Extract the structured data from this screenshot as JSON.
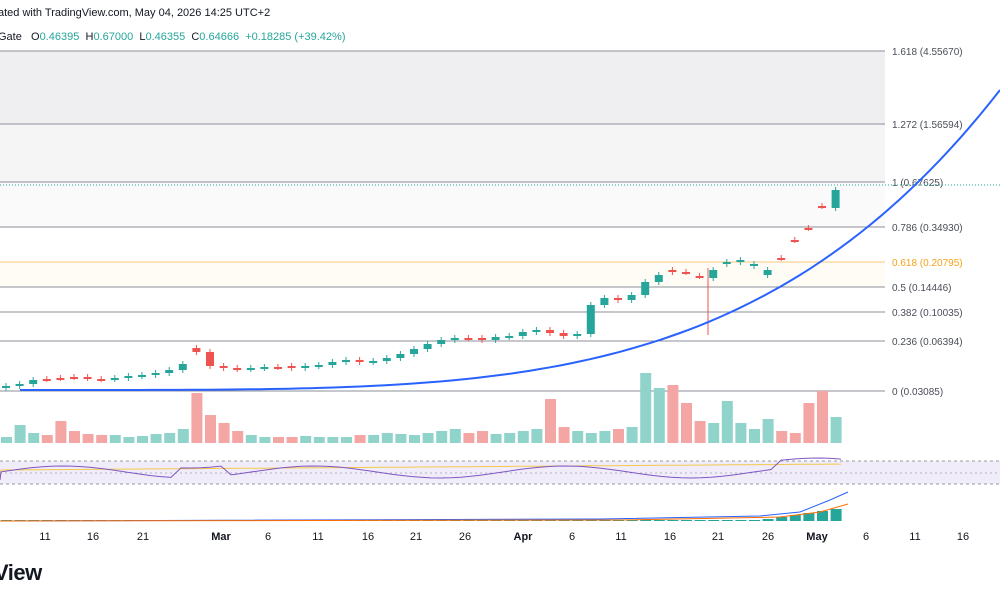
{
  "header": {
    "published": "ated with TradingView.com, May 04, 2026 14:25 UTC+2",
    "symbol": "Gate",
    "open_label": "O",
    "open": "0.46395",
    "high_label": "H",
    "high": "0.67000",
    "low_label": "L",
    "low": "0.46355",
    "close_label": "C",
    "close": "0.64666",
    "change": "+0.18285 (+39.42%)"
  },
  "branding": {
    "logo_text": "View"
  },
  "colors": {
    "up": "#26a69a",
    "down": "#ef5350",
    "curve": "#2962ff",
    "fib_highlight": "#f7a21b",
    "rsi": "#7e57c2",
    "rsi_ma": "#f2c94c",
    "macd": "#2962ff",
    "signal": "#ff6d00"
  },
  "chart_data": {
    "type": "candlestick",
    "title": "",
    "y_scale": "log",
    "fib_levels": [
      {
        "ratio": "1.618",
        "value": 4.5567,
        "label": "1.618 (4.55670)"
      },
      {
        "ratio": "1.272",
        "value": 1.56594,
        "label": "1.272 (1.56594)"
      },
      {
        "ratio": "1",
        "value": 0.67625,
        "label": "1 (0.67625)"
      },
      {
        "ratio": "0.786",
        "value": 0.3493,
        "label": "0.786 (0.34930)"
      },
      {
        "ratio": "0.618",
        "value": 0.20795,
        "label": "0.618 (0.20795)",
        "highlight": true
      },
      {
        "ratio": "0.5",
        "value": 0.14446,
        "label": "0.5 (0.14446)"
      },
      {
        "ratio": "0.382",
        "value": 0.10035,
        "label": "0.382 (0.10035)"
      },
      {
        "ratio": "0.236",
        "value": 0.06394,
        "label": "0.236 (0.06394)"
      },
      {
        "ratio": "0",
        "value": 0.03085,
        "label": "0 (0.03085)"
      }
    ],
    "x_ticks": [
      {
        "label": "11",
        "bold": false
      },
      {
        "label": "16",
        "bold": false
      },
      {
        "label": "21",
        "bold": false
      },
      {
        "label": "Mar",
        "bold": true
      },
      {
        "label": "6",
        "bold": false
      },
      {
        "label": "11",
        "bold": false
      },
      {
        "label": "16",
        "bold": false
      },
      {
        "label": "21",
        "bold": false
      },
      {
        "label": "26",
        "bold": false
      },
      {
        "label": "Apr",
        "bold": true
      },
      {
        "label": "6",
        "bold": false
      },
      {
        "label": "11",
        "bold": false
      },
      {
        "label": "16",
        "bold": false
      },
      {
        "label": "21",
        "bold": false
      },
      {
        "label": "26",
        "bold": false
      },
      {
        "label": "May",
        "bold": true
      },
      {
        "label": "6",
        "bold": false
      },
      {
        "label": "11",
        "bold": false
      },
      {
        "label": "16",
        "bold": false
      }
    ],
    "last_candle": {
      "open": 0.46395,
      "high": 0.67,
      "low": 0.46355,
      "close": 0.64666
    }
  }
}
